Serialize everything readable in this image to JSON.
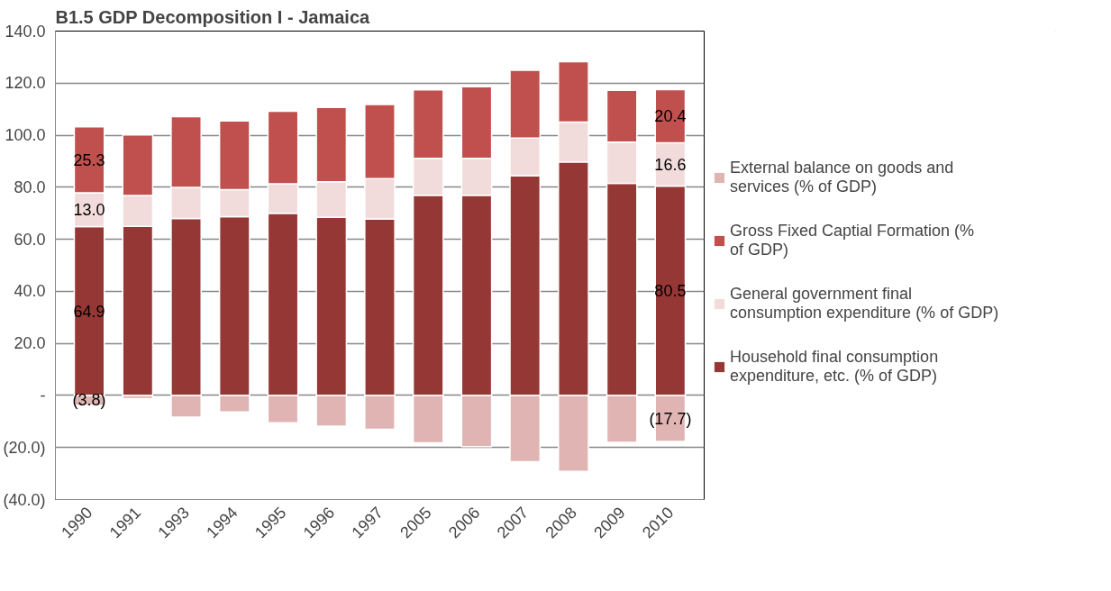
{
  "chart_data": {
    "type": "bar",
    "stacked": true,
    "title": "B1.5 GDP Decomposition I - Jamaica",
    "categories": [
      "1990",
      "1991",
      "1993",
      "1994",
      "1995",
      "1996",
      "1997",
      "2005",
      "2006",
      "2007",
      "2008",
      "2009",
      "2010"
    ],
    "series": [
      {
        "name": "Household final consumption expenditure, etc. (% of GDP)",
        "color": "#953735",
        "values": [
          64.9,
          65.0,
          68.0,
          68.7,
          70.0,
          68.4,
          67.8,
          76.9,
          76.9,
          84.4,
          89.7,
          81.5,
          80.5
        ],
        "value_labels": [
          "64.9",
          null,
          null,
          null,
          null,
          null,
          null,
          null,
          null,
          null,
          null,
          null,
          "80.5"
        ]
      },
      {
        "name": "General government final consumption expenditure (% of GDP)",
        "color": "#f2dcdb",
        "values": [
          13.0,
          11.8,
          11.9,
          10.4,
          11.3,
          13.7,
          15.5,
          14.2,
          14.2,
          14.5,
          15.3,
          15.8,
          16.6
        ],
        "value_labels": [
          "13.0",
          null,
          null,
          null,
          null,
          null,
          null,
          null,
          null,
          null,
          null,
          null,
          "16.6"
        ]
      },
      {
        "name": "Gross Fixed Captial Formation (% of GDP)",
        "color": "#c0504d",
        "values": [
          25.3,
          23.3,
          27.2,
          26.4,
          27.9,
          28.6,
          28.5,
          26.3,
          27.5,
          26.0,
          23.2,
          19.9,
          20.4
        ],
        "value_labels": [
          "25.3",
          null,
          null,
          null,
          null,
          null,
          null,
          null,
          null,
          null,
          null,
          null,
          "20.4"
        ]
      },
      {
        "name": "External balance on goods and services (% of GDP)",
        "color": "#e0b4b3",
        "values": [
          -3.8,
          -1.2,
          -8.3,
          -6.3,
          -10.5,
          -11.8,
          -13.0,
          -18.2,
          -19.7,
          -25.5,
          -29.2,
          -18.0,
          -17.7
        ],
        "value_labels": [
          "(3.8)",
          null,
          null,
          null,
          null,
          null,
          null,
          null,
          null,
          null,
          null,
          null,
          "(17.7)"
        ]
      }
    ],
    "ylim": [
      -40,
      140
    ],
    "yticks": [
      {
        "value": -40,
        "label": "(40.0)"
      },
      {
        "value": -20,
        "label": "(20.0)"
      },
      {
        "value": 0,
        "label": "-"
      },
      {
        "value": 20,
        "label": "20.0"
      },
      {
        "value": 40,
        "label": "40.0"
      },
      {
        "value": 60,
        "label": "60.0"
      },
      {
        "value": 80,
        "label": "80.0"
      },
      {
        "value": 100,
        "label": "100.0"
      },
      {
        "value": 120,
        "label": "120.0"
      },
      {
        "value": 140,
        "label": "140.0"
      }
    ],
    "grid": "y",
    "legend": "right"
  }
}
